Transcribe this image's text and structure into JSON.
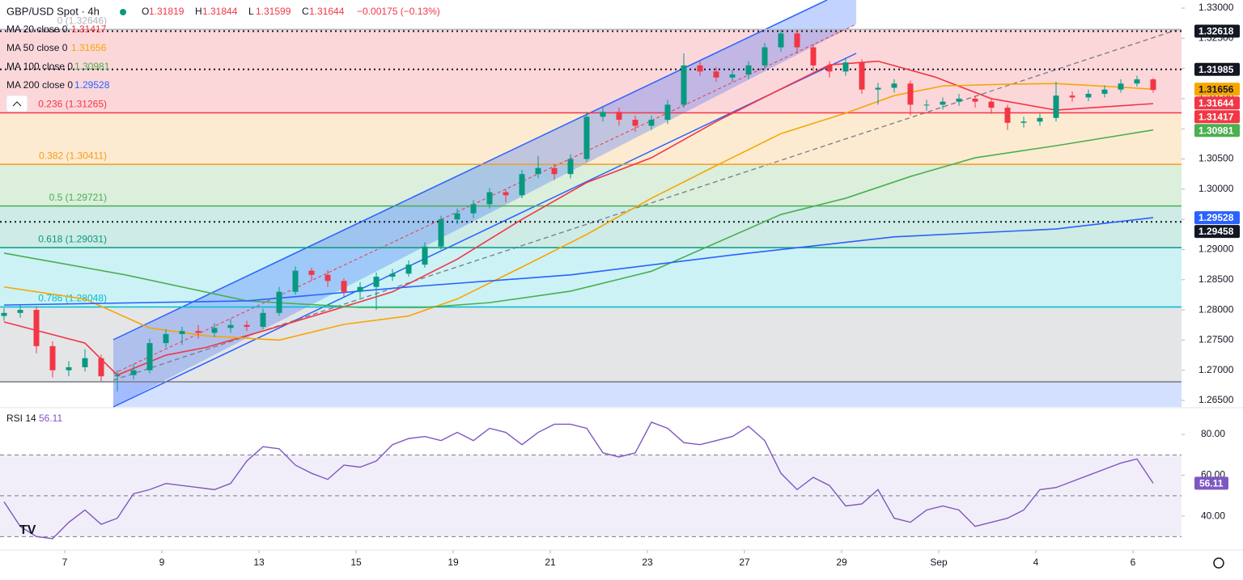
{
  "chart_data": [
    {
      "type": "candlestick",
      "title": "GBP/USD Spot · 4h",
      "ohlc": [
        {
          "key": "O",
          "text": "1.31819"
        },
        {
          "key": "H",
          "text": "1.31844"
        },
        {
          "key": "L",
          "text": "1.31599"
        },
        {
          "key": "C",
          "text": "1.31644"
        }
      ],
      "change_text": "−0.00175 (−0.13%)",
      "up_color": "#089981",
      "down_color": "#f23645",
      "x": [
        0,
        2,
        4,
        6,
        8,
        10,
        12,
        14,
        16,
        18,
        20,
        22,
        24,
        26,
        28,
        30,
        32,
        34,
        36,
        38,
        40,
        42,
        44,
        46,
        48,
        50,
        52,
        54,
        56,
        58,
        60,
        62,
        64,
        66,
        68,
        70,
        72,
        74,
        76,
        78,
        80,
        82,
        84,
        86,
        88,
        90,
        92,
        94,
        96,
        98,
        100,
        102,
        104,
        106,
        108,
        110,
        112,
        114,
        116,
        118,
        120,
        122,
        124,
        126,
        128,
        130,
        132,
        134,
        136,
        138,
        140,
        142
      ],
      "open": [
        1.279,
        1.2795,
        1.28,
        1.274,
        1.27,
        1.2705,
        1.272,
        1.269,
        1.2692,
        1.27,
        1.2745,
        1.276,
        1.2765,
        1.2762,
        1.277,
        1.2775,
        1.2772,
        1.2795,
        1.283,
        1.2865,
        1.2858,
        1.2848,
        1.283,
        1.2838,
        1.2855,
        1.286,
        1.2875,
        1.2905,
        1.295,
        1.296,
        1.2975,
        1.2995,
        1.299,
        1.3025,
        1.3035,
        1.3025,
        1.305,
        1.312,
        1.3128,
        1.3115,
        1.3105,
        1.3115,
        1.314,
        1.3205,
        1.3195,
        1.3185,
        1.319,
        1.3205,
        1.3235,
        1.3258,
        1.3235,
        1.3205,
        1.3195,
        1.321,
        1.3165,
        1.3168,
        1.3175,
        1.314,
        1.314,
        1.3145,
        1.315,
        1.3145,
        1.3135,
        1.311,
        1.3112,
        1.3118,
        1.3155,
        1.3152,
        1.3158,
        1.3165,
        1.3175,
        1.31819
      ],
      "high": [
        1.2803,
        1.2808,
        1.2806,
        1.2748,
        1.2715,
        1.2735,
        1.2726,
        1.27,
        1.271,
        1.2752,
        1.2768,
        1.2772,
        1.2775,
        1.2778,
        1.2785,
        1.2782,
        1.2802,
        1.2838,
        1.2872,
        1.287,
        1.2866,
        1.2852,
        1.2846,
        1.2862,
        1.2868,
        1.2882,
        1.2912,
        1.2956,
        1.2968,
        1.2982,
        1.3002,
        1.3,
        1.3032,
        1.3055,
        1.3042,
        1.3058,
        1.3128,
        1.3136,
        1.3135,
        1.3122,
        1.3122,
        1.3148,
        1.3225,
        1.3212,
        1.3202,
        1.3198,
        1.3212,
        1.3242,
        1.3264,
        1.3262,
        1.324,
        1.3212,
        1.3218,
        1.3215,
        1.3176,
        1.3182,
        1.318,
        1.3148,
        1.3152,
        1.3158,
        1.3155,
        1.315,
        1.314,
        1.312,
        1.3125,
        1.3178,
        1.3162,
        1.3165,
        1.3172,
        1.3182,
        1.3188,
        1.31844
      ],
      "low": [
        1.2782,
        1.2787,
        1.2728,
        1.2688,
        1.269,
        1.2698,
        1.2682,
        1.2665,
        1.2685,
        1.2695,
        1.2738,
        1.2742,
        1.2752,
        1.2755,
        1.2762,
        1.2765,
        1.2768,
        1.279,
        1.2825,
        1.2848,
        1.2838,
        1.2822,
        1.282,
        1.28,
        1.2848,
        1.2855,
        1.287,
        1.29,
        1.2942,
        1.2952,
        1.2968,
        1.2978,
        1.2985,
        1.3018,
        1.3015,
        1.3018,
        1.3045,
        1.3112,
        1.3105,
        1.3095,
        1.3098,
        1.3108,
        1.3135,
        1.3188,
        1.3178,
        1.3178,
        1.3182,
        1.3198,
        1.3228,
        1.3225,
        1.3195,
        1.3185,
        1.3188,
        1.3158,
        1.314,
        1.316,
        1.3122,
        1.313,
        1.3132,
        1.3138,
        1.3135,
        1.3125,
        1.3098,
        1.3102,
        1.3105,
        1.3112,
        1.3145,
        1.3146,
        1.3152,
        1.316,
        1.317,
        1.31599
      ],
      "close": [
        1.2795,
        1.28,
        1.274,
        1.27,
        1.2705,
        1.272,
        1.269,
        1.2692,
        1.27,
        1.2745,
        1.276,
        1.2765,
        1.2762,
        1.277,
        1.2775,
        1.2772,
        1.2795,
        1.283,
        1.2865,
        1.2858,
        1.2848,
        1.283,
        1.2838,
        1.2855,
        1.286,
        1.2875,
        1.2905,
        1.295,
        1.296,
        1.2975,
        1.2995,
        1.299,
        1.3025,
        1.3035,
        1.3025,
        1.305,
        1.312,
        1.3128,
        1.3115,
        1.3105,
        1.3115,
        1.314,
        1.3205,
        1.3195,
        1.3185,
        1.319,
        1.3205,
        1.3235,
        1.3258,
        1.3235,
        1.3205,
        1.3195,
        1.321,
        1.3165,
        1.3168,
        1.3175,
        1.314,
        1.314,
        1.3145,
        1.315,
        1.3145,
        1.3135,
        1.311,
        1.3112,
        1.3118,
        1.3155,
        1.3152,
        1.3158,
        1.3165,
        1.3175,
        1.31819,
        1.31644
      ],
      "series": [
        {
          "name": "MA 20 close 0",
          "legend_value": "1.31417",
          "color": "#f23645",
          "x": [
            0,
            10,
            14,
            20,
            25,
            32,
            40,
            48,
            56,
            64,
            72,
            80,
            88,
            96,
            102,
            108,
            115,
            122,
            130,
            142
          ],
          "values": [
            1.278,
            1.2745,
            1.2692,
            1.2725,
            1.2738,
            1.2765,
            1.2797,
            1.283,
            1.2884,
            1.295,
            1.3011,
            1.3052,
            1.3112,
            1.3166,
            1.3206,
            1.3212,
            1.3186,
            1.315,
            1.3131,
            1.31417
          ]
        },
        {
          "name": "MA 50 close 0",
          "legend_value": "1.31656",
          "color": "#f7a600",
          "x": [
            0,
            10,
            18,
            25,
            34,
            42,
            50,
            56,
            64,
            72,
            80,
            88,
            96,
            104,
            110,
            116,
            124,
            130,
            138,
            142
          ],
          "values": [
            1.2838,
            1.2818,
            1.277,
            1.2757,
            1.275,
            1.2776,
            1.279,
            1.2818,
            1.2871,
            1.2925,
            1.2985,
            1.3039,
            1.3092,
            1.3126,
            1.3155,
            1.3171,
            1.3174,
            1.3175,
            1.3169,
            1.31656
          ]
        },
        {
          "name": "MA 100 close 0",
          "legend_value": "1.30981",
          "color": "#4caf50",
          "x": [
            0,
            15,
            30,
            44,
            52,
            60,
            70,
            80,
            88,
            96,
            104,
            112,
            120,
            130,
            142
          ],
          "values": [
            1.2894,
            1.2858,
            1.2815,
            1.2804,
            1.2804,
            1.2812,
            1.2831,
            1.2864,
            1.2911,
            1.2958,
            1.2985,
            1.3021,
            1.3052,
            1.3072,
            1.30981
          ]
        },
        {
          "name": "MA 200 close 0",
          "legend_value": "1.29528",
          "color": "#2962ff",
          "x": [
            0,
            30,
            50,
            70,
            90,
            110,
            130,
            142
          ],
          "values": [
            1.2808,
            1.2815,
            1.2838,
            1.2858,
            1.2891,
            1.2921,
            1.2934,
            1.29528
          ]
        }
      ],
      "fib_levels": [
        {
          "value": 1.32646,
          "label": "0 (1.32646)",
          "color": "#b2b5be"
        },
        {
          "value": 1.31265,
          "label": "0.236 (1.31265)",
          "color": "#f23645"
        },
        {
          "value": 1.30411,
          "label": "0.382 (1.30411)",
          "color": "#f59c1a"
        },
        {
          "value": 1.29721,
          "label": "0.5 (1.29721)",
          "color": "#4caf50"
        },
        {
          "value": 1.29031,
          "label": "0.618 (1.29031)",
          "color": "#089981"
        },
        {
          "value": 1.28048,
          "label": "0.786 (1.28048)",
          "color": "#00bcd4"
        },
        {
          "value": 1.26808,
          "color": "#787b86"
        }
      ],
      "hlines": [
        1.32618,
        1.31985,
        1.29458
      ],
      "price_tags": [
        {
          "value": 1.32618,
          "label": "1.32618",
          "color": "#131722"
        },
        {
          "value": 1.31985,
          "label": "1.31985",
          "color": "#131722"
        },
        {
          "value": 1.31656,
          "label": "1.31656",
          "color": "#f7a600"
        },
        {
          "value": 1.31644,
          "label": "1.31644",
          "color": "#f23645"
        },
        {
          "value": 1.31417,
          "label": "1.31417",
          "color": "#f23645"
        },
        {
          "value": 1.30981,
          "label": "1.30981",
          "color": "#4caf50"
        },
        {
          "value": 1.29528,
          "label": "1.29528",
          "color": "#2962ff"
        },
        {
          "value": 1.29458,
          "label": "1.29458",
          "color": "#131722"
        }
      ],
      "xlim": [
        -0.5,
        145.5
      ],
      "xticks": [
        {
          "value": 7.5,
          "label": "7"
        },
        {
          "value": 19.5,
          "label": "9"
        },
        {
          "value": 31.5,
          "label": "13"
        },
        {
          "value": 43.5,
          "label": "15"
        },
        {
          "value": 55.5,
          "label": "19"
        },
        {
          "value": 67.5,
          "label": "21"
        },
        {
          "value": 79.5,
          "label": "23"
        },
        {
          "value": 91.5,
          "label": "27"
        },
        {
          "value": 103.5,
          "label": "29"
        },
        {
          "value": 115.5,
          "label": "Sep"
        },
        {
          "value": 127.5,
          "label": "4"
        },
        {
          "value": 139.5,
          "label": "6"
        }
      ],
      "ylim": [
        1.26393,
        1.33134
      ],
      "yticks": [
        {
          "value": 1.33,
          "label": "1.33000"
        },
        {
          "value": 1.325,
          "label": "1.32500"
        },
        {
          "value": 1.32,
          "label": "1.32000"
        },
        {
          "value": 1.315,
          "label": "1.31500"
        },
        {
          "value": 1.31,
          "label": "1.31000"
        },
        {
          "value": 1.305,
          "label": "1.30500"
        },
        {
          "value": 1.3,
          "label": "1.30000"
        },
        {
          "value": 1.295,
          "label": "1.29500"
        },
        {
          "value": 1.29,
          "label": "1.29000"
        },
        {
          "value": 1.285,
          "label": "1.28500"
        },
        {
          "value": 1.28,
          "label": "1.28000"
        },
        {
          "value": 1.275,
          "label": "1.27500"
        },
        {
          "value": 1.27,
          "label": "1.27000"
        },
        {
          "value": 1.265,
          "label": "1.26500"
        }
      ]
    },
    {
      "type": "line",
      "title": "RSI 14",
      "legend_value": "56.11",
      "color": "#7e57c2",
      "x": [
        0,
        2,
        4,
        6,
        8,
        10,
        12,
        14,
        16,
        18,
        20,
        22,
        24,
        26,
        28,
        30,
        32,
        34,
        36,
        38,
        40,
        42,
        44,
        46,
        48,
        50,
        52,
        54,
        56,
        58,
        60,
        62,
        64,
        66,
        68,
        70,
        72,
        74,
        76,
        78,
        80,
        82,
        84,
        86,
        88,
        90,
        92,
        94,
        96,
        98,
        100,
        102,
        104,
        106,
        108,
        110,
        112,
        114,
        116,
        118,
        120,
        122,
        124,
        126,
        128,
        130,
        132,
        134,
        136,
        138,
        140,
        142
      ],
      "values": [
        47,
        35,
        30,
        29,
        37,
        43,
        36,
        39,
        51,
        53,
        56,
        55,
        54,
        53,
        56,
        67,
        74,
        73,
        65,
        61,
        58,
        65,
        64,
        67,
        75,
        78,
        79,
        77,
        81,
        77,
        83,
        81,
        75,
        81,
        85,
        85,
        83,
        71,
        69,
        71,
        86,
        83,
        76,
        75,
        77,
        79,
        84,
        77,
        61,
        53,
        59,
        55,
        45,
        46,
        53,
        39,
        37,
        43,
        45,
        43,
        35,
        37,
        39,
        43,
        53,
        54,
        57,
        60,
        63,
        66,
        68,
        56.11
      ],
      "value_label": "56.11",
      "levels": [
        70,
        50,
        30
      ],
      "xlim": [
        -0.5,
        145.5
      ],
      "ylim": [
        23.4,
        92.7
      ],
      "yticks": [
        {
          "value": 80,
          "label": "80.00"
        },
        {
          "value": 60,
          "label": "60.00"
        },
        {
          "value": 40,
          "label": "40.00"
        }
      ]
    }
  ]
}
